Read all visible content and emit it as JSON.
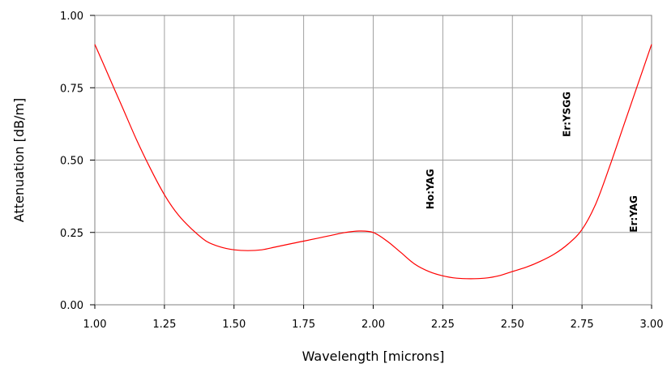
{
  "chart_data": {
    "type": "line",
    "xlabel": "Wavelength [microns]",
    "ylabel": "Attenuation [dB/m]",
    "xlim": [
      1.0,
      3.0
    ],
    "ylim": [
      0.0,
      1.0
    ],
    "x_ticks": [
      1.0,
      1.25,
      1.5,
      1.75,
      2.0,
      2.25,
      2.5,
      2.75,
      3.0
    ],
    "x_tick_labels": [
      "1.00",
      "1.25",
      "1.50",
      "1.75",
      "2.00",
      "2.25",
      "2.50",
      "2.75",
      "3.00"
    ],
    "y_ticks": [
      0.0,
      0.25,
      0.5,
      0.75,
      1.0
    ],
    "y_tick_labels": [
      "0.00",
      "0.25",
      "0.50",
      "0.75",
      "1.00"
    ],
    "grid": true,
    "series": [
      {
        "color": "#ff0000",
        "x": [
          1.0,
          1.05,
          1.1,
          1.15,
          1.2,
          1.25,
          1.3,
          1.35,
          1.4,
          1.45,
          1.5,
          1.55,
          1.6,
          1.65,
          1.7,
          1.75,
          1.8,
          1.85,
          1.9,
          1.95,
          2.0,
          2.05,
          2.1,
          2.15,
          2.2,
          2.25,
          2.3,
          2.35,
          2.4,
          2.45,
          2.5,
          2.55,
          2.6,
          2.65,
          2.7,
          2.75,
          2.8,
          2.85,
          2.9,
          2.95,
          3.0
        ],
        "y": [
          0.9,
          0.79,
          0.68,
          0.57,
          0.47,
          0.38,
          0.31,
          0.26,
          0.22,
          0.2,
          0.19,
          0.187,
          0.19,
          0.2,
          0.21,
          0.22,
          0.23,
          0.24,
          0.25,
          0.255,
          0.25,
          0.22,
          0.18,
          0.14,
          0.115,
          0.1,
          0.092,
          0.09,
          0.092,
          0.1,
          0.115,
          0.13,
          0.15,
          0.175,
          0.21,
          0.26,
          0.35,
          0.48,
          0.62,
          0.76,
          0.9
        ]
      }
    ],
    "annotations": [
      {
        "text": "Ho:YAG",
        "x": 2.2,
        "y": 0.33
      },
      {
        "text": "Er:YSGG",
        "x": 2.69,
        "y": 0.58
      },
      {
        "text": "Er:YAG",
        "x": 2.93,
        "y": 0.25
      }
    ]
  }
}
